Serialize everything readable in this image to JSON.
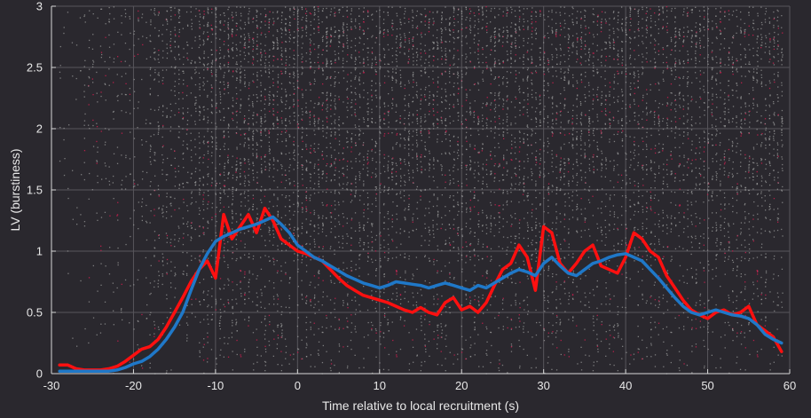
{
  "chart_data": {
    "type": "scatter",
    "title": "",
    "xlabel": "Time relative to local recruitment (s)",
    "ylabel": "LV (burstiness)",
    "xlim": [
      -30,
      60
    ],
    "ylim": [
      0,
      3
    ],
    "xticks": [
      -30,
      -20,
      -10,
      0,
      10,
      20,
      30,
      40,
      50,
      60
    ],
    "yticks": [
      0,
      0.5,
      1,
      1.5,
      2,
      2.5,
      3
    ],
    "xtick_labels": [
      "-30",
      "-20",
      "-10",
      "0",
      "10",
      "20",
      "30",
      "40",
      "50",
      "60"
    ],
    "ytick_labels": [
      "0",
      "0.5",
      "1",
      "1.5",
      "2",
      "2.5",
      "3"
    ],
    "grid": true,
    "colors": {
      "background": "#2a282e",
      "grid": "#58565c",
      "axis": "#d8d8d8",
      "scatter_gray": "#9a9a9a",
      "scatter_red": "#c21f4c",
      "red_line": "#ff1010",
      "blue_line": "#1f78c8"
    },
    "scatter_description": "dense cloud of individual LV values from many cells, mostly between x=-25 and x=60 and y=0 to 3",
    "series": [
      {
        "style": "red-line",
        "x": [
          -29,
          -28,
          -27,
          -26,
          -25,
          -24,
          -23,
          -22,
          -21,
          -20,
          -19,
          -18,
          -17,
          -16,
          -15,
          -14,
          -13,
          -12,
          -11,
          -10,
          -9,
          -8,
          -7,
          -6,
          -5,
          -4,
          -3,
          -2,
          -1,
          0,
          1,
          2,
          3,
          4,
          5,
          6,
          7,
          8,
          9,
          10,
          11,
          12,
          13,
          14,
          15,
          16,
          17,
          18,
          19,
          20,
          21,
          22,
          23,
          24,
          25,
          26,
          27,
          28,
          29,
          30,
          31,
          32,
          33,
          34,
          35,
          36,
          37,
          38,
          39,
          40,
          41,
          42,
          43,
          44,
          45,
          46,
          47,
          48,
          49,
          50,
          51,
          52,
          53,
          54,
          55,
          56,
          57,
          58,
          59
        ],
        "y": [
          0.07,
          0.07,
          0.04,
          0.03,
          0.03,
          0.03,
          0.04,
          0.06,
          0.1,
          0.15,
          0.2,
          0.22,
          0.28,
          0.38,
          0.5,
          0.62,
          0.75,
          0.85,
          0.92,
          0.78,
          1.3,
          1.1,
          1.2,
          1.3,
          1.15,
          1.35,
          1.25,
          1.1,
          1.05,
          1.0,
          0.98,
          0.95,
          0.92,
          0.85,
          0.78,
          0.72,
          0.68,
          0.64,
          0.62,
          0.6,
          0.58,
          0.55,
          0.52,
          0.5,
          0.54,
          0.5,
          0.48,
          0.58,
          0.62,
          0.52,
          0.55,
          0.5,
          0.58,
          0.72,
          0.85,
          0.9,
          1.05,
          0.95,
          0.68,
          1.2,
          1.15,
          0.9,
          0.82,
          0.9,
          1.0,
          1.05,
          0.88,
          0.85,
          0.82,
          0.95,
          1.15,
          1.1,
          1.0,
          0.95,
          0.8,
          0.7,
          0.6,
          0.52,
          0.48,
          0.45,
          0.5,
          0.52,
          0.48,
          0.5,
          0.55,
          0.4,
          0.35,
          0.3,
          0.18
        ]
      },
      {
        "style": "blue-line",
        "x": [
          -29,
          -28,
          -27,
          -26,
          -25,
          -24,
          -23,
          -22,
          -21,
          -20,
          -19,
          -18,
          -17,
          -16,
          -15,
          -14,
          -13,
          -12,
          -11,
          -10,
          -9,
          -8,
          -7,
          -6,
          -5,
          -4,
          -3,
          -2,
          -1,
          0,
          1,
          2,
          3,
          4,
          5,
          6,
          7,
          8,
          9,
          10,
          11,
          12,
          13,
          14,
          15,
          16,
          17,
          18,
          19,
          20,
          21,
          22,
          23,
          24,
          25,
          26,
          27,
          28,
          29,
          30,
          31,
          32,
          33,
          34,
          35,
          36,
          37,
          38,
          39,
          40,
          41,
          42,
          43,
          44,
          45,
          46,
          47,
          48,
          49,
          50,
          51,
          52,
          53,
          54,
          55,
          56,
          57,
          58,
          59
        ],
        "y": [
          0.02,
          0.02,
          0.02,
          0.02,
          0.02,
          0.02,
          0.02,
          0.03,
          0.05,
          0.08,
          0.1,
          0.14,
          0.2,
          0.28,
          0.38,
          0.5,
          0.68,
          0.85,
          0.98,
          1.08,
          1.12,
          1.15,
          1.18,
          1.2,
          1.22,
          1.25,
          1.28,
          1.22,
          1.15,
          1.05,
          1.0,
          0.95,
          0.92,
          0.88,
          0.84,
          0.8,
          0.77,
          0.74,
          0.72,
          0.7,
          0.72,
          0.75,
          0.74,
          0.73,
          0.72,
          0.7,
          0.72,
          0.74,
          0.72,
          0.7,
          0.68,
          0.72,
          0.7,
          0.74,
          0.78,
          0.82,
          0.85,
          0.83,
          0.8,
          0.9,
          0.95,
          0.88,
          0.82,
          0.8,
          0.85,
          0.9,
          0.92,
          0.95,
          0.97,
          0.98,
          0.95,
          0.92,
          0.85,
          0.78,
          0.7,
          0.62,
          0.55,
          0.5,
          0.48,
          0.5,
          0.52,
          0.5,
          0.48,
          0.47,
          0.45,
          0.4,
          0.32,
          0.28,
          0.25
        ]
      }
    ]
  }
}
